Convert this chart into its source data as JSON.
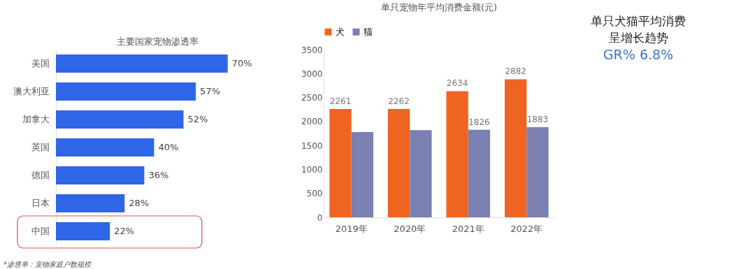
{
  "chart_data": [
    {
      "type": "bar",
      "title": "主要国家宠物渗透率",
      "orientation": "horizontal",
      "categories": [
        "美国",
        "澳大利亚",
        "加拿大",
        "英国",
        "德国",
        "日本",
        "中国"
      ],
      "values": [
        70,
        57,
        52,
        40,
        36,
        28,
        22
      ],
      "value_labels": [
        "70%",
        "57%",
        "52%",
        "40%",
        "36%",
        "28%",
        "22%"
      ],
      "color": "#2f66e8",
      "annotations": [
        "*渗透率：宠物家庭户数规模"
      ],
      "tick_labels": "y"
    },
    {
      "type": "bar",
      "title": "单只宠物年平均消费金额(元)",
      "categories": [
        "2019年",
        "2020年",
        "2021年",
        "2022年"
      ],
      "series": [
        {
          "name": "犬",
          "color": "#ee6420",
          "values": [
            2261,
            2262,
            2634,
            2882
          ],
          "value_labels": [
            "2261",
            "2262",
            "2634",
            "2882"
          ]
        },
        {
          "name": "猫",
          "color": "#7a80b2",
          "values": [
            1780,
            1820,
            1826,
            1883
          ],
          "value_labels": [
            null,
            null,
            "1826",
            "1883"
          ]
        }
      ],
      "ylim": [
        0,
        3500
      ],
      "yticks": [
        0,
        500,
        1000,
        1500,
        2000,
        2500,
        3000,
        3500
      ],
      "legend": "top",
      "annotations": [
        "单只犬猫平均消费",
        "呈增长趋势",
        "GR% 6.8%"
      ]
    }
  ]
}
